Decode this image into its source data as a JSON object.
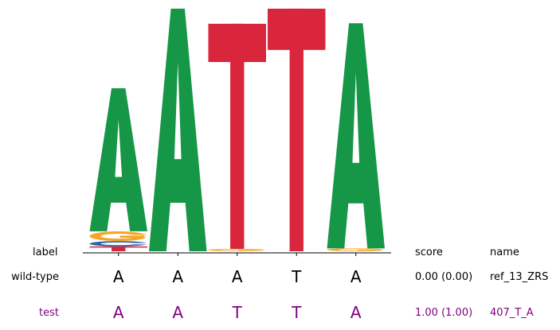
{
  "chart_data": {
    "type": "sequence-logo",
    "positions": [
      {
        "stack": [
          {
            "letter": "T",
            "h": 0.02
          },
          {
            "letter": "C",
            "h": 0.022
          },
          {
            "letter": "G",
            "h": 0.04
          },
          {
            "letter": "A",
            "h": 0.588
          }
        ]
      },
      {
        "stack": [
          {
            "letter": "A",
            "h": 0.997
          }
        ]
      },
      {
        "stack": [
          {
            "letter": "G",
            "h": 0.01
          },
          {
            "letter": "T",
            "h": 0.925
          }
        ]
      },
      {
        "stack": [
          {
            "letter": "T",
            "h": 0.997
          }
        ]
      },
      {
        "stack": [
          {
            "letter": "G",
            "h": 0.012
          },
          {
            "letter": "A",
            "h": 0.925
          }
        ]
      }
    ],
    "colors": {
      "A": "#169647",
      "C": "#2563a8",
      "G": "#f5a623",
      "T": "#da263c"
    },
    "headers": {
      "label": "label",
      "score": "score",
      "name": "name"
    },
    "rows": [
      {
        "label": "wild-type",
        "label_color": "#000000",
        "bases": [
          "A",
          "A",
          "A",
          "T",
          "A"
        ],
        "score": "0.00 (0.00)",
        "name": "ref_13_ZRS"
      },
      {
        "label": "test",
        "label_color": "#800080",
        "bases": [
          "A",
          "A",
          "T",
          "T",
          "A"
        ],
        "score": "1.00 (1.00)",
        "name": "407_T_A"
      }
    ]
  }
}
